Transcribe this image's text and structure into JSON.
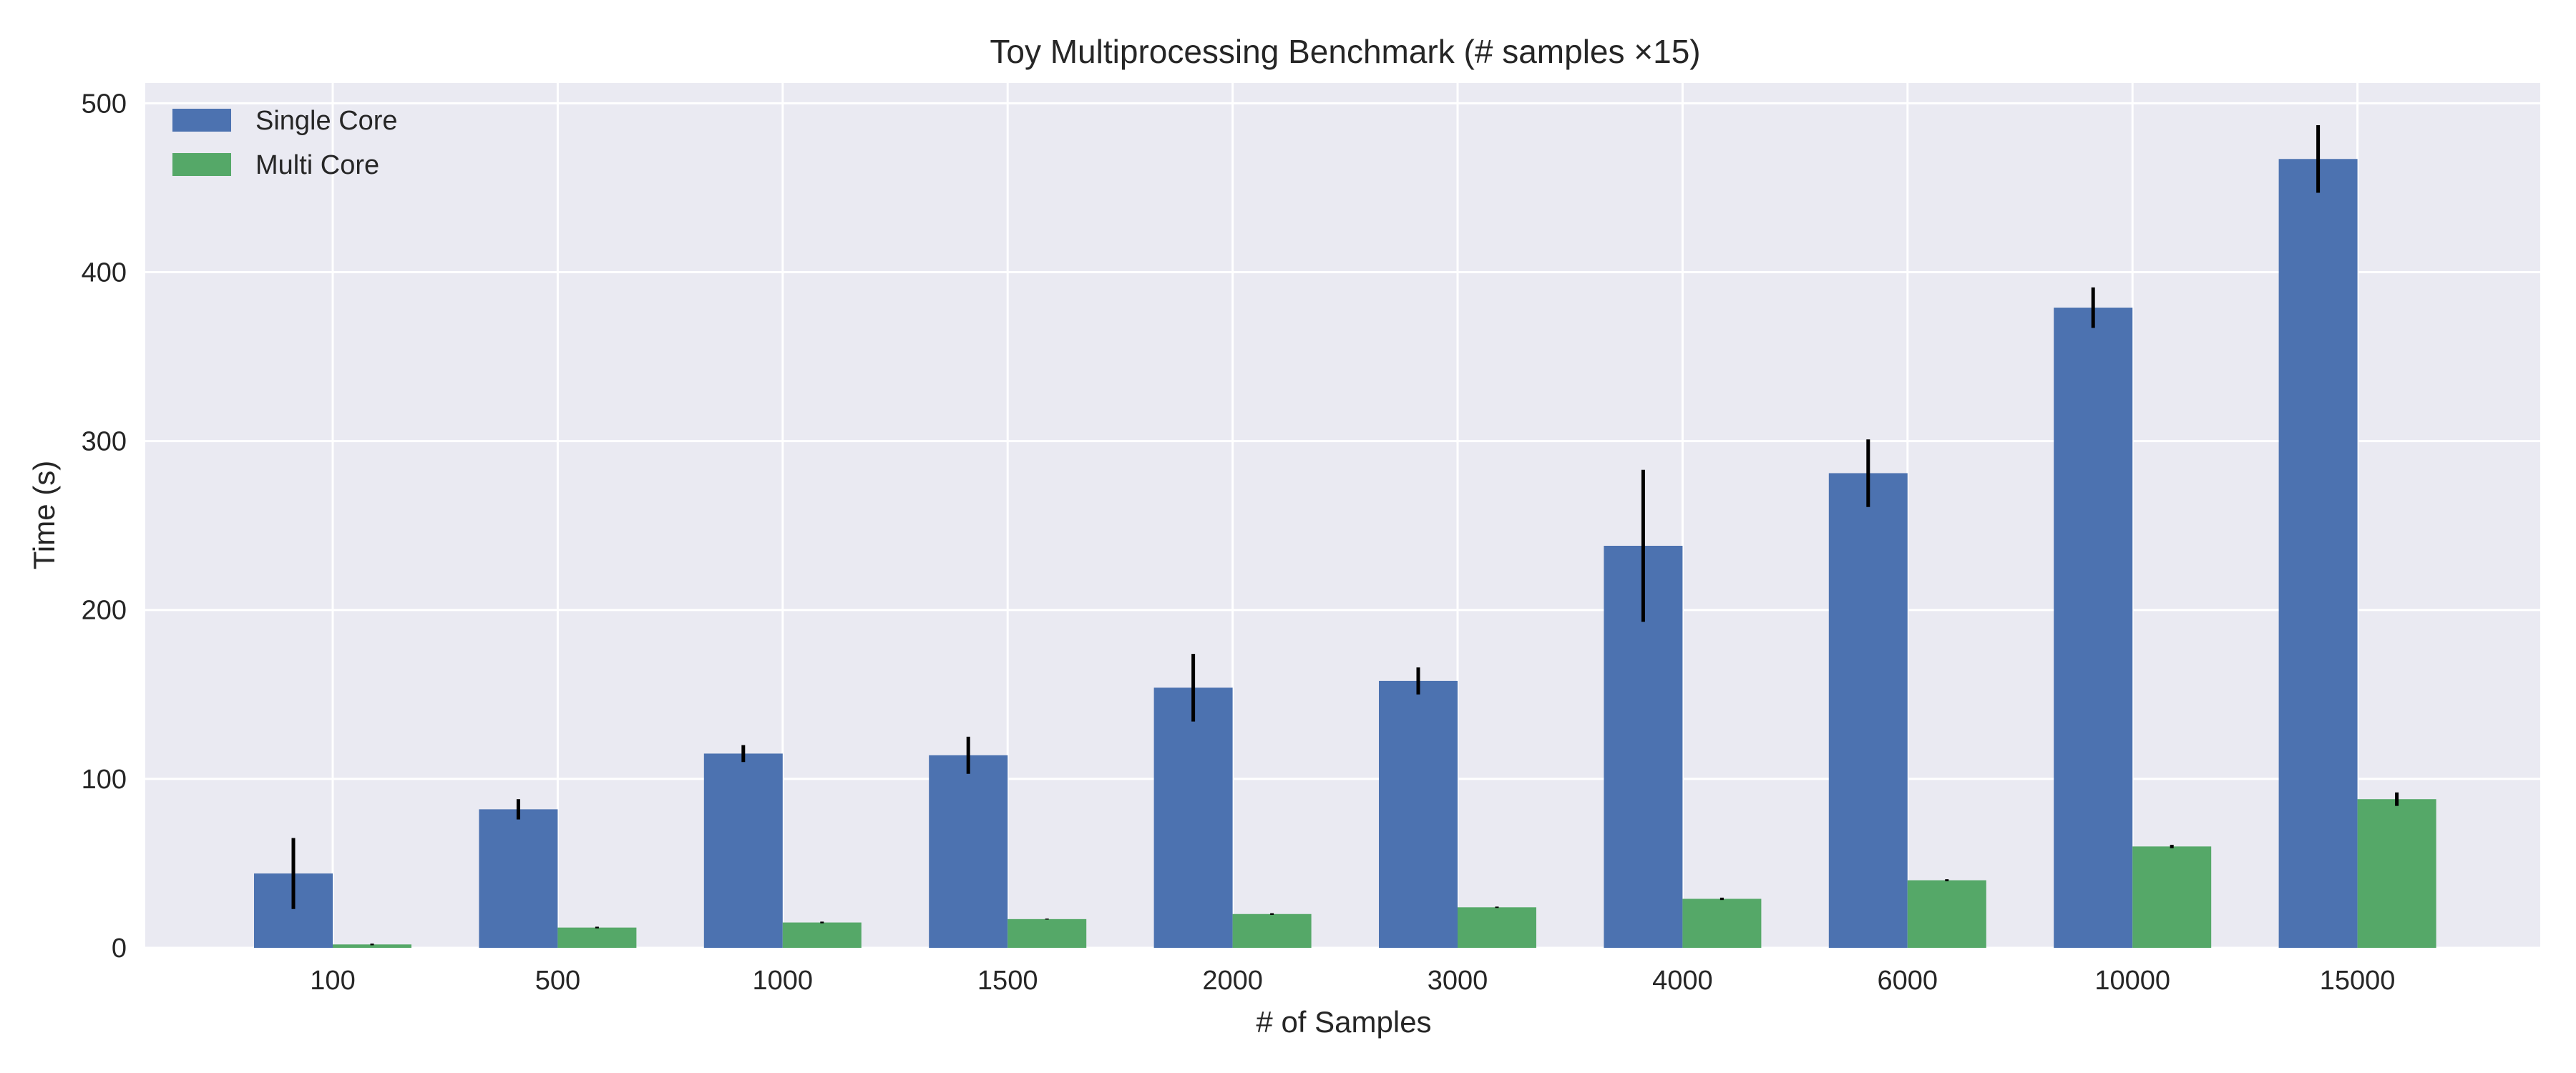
{
  "chart_data": {
    "type": "bar",
    "title": "Toy Multiprocessing Benchmark (# samples ×15)",
    "xlabel": "# of Samples",
    "ylabel": "Time (s)",
    "categories": [
      "100",
      "500",
      "1000",
      "1500",
      "2000",
      "3000",
      "4000",
      "6000",
      "10000",
      "15000"
    ],
    "ylim": [
      0,
      512
    ],
    "yticks": [
      0,
      100,
      200,
      300,
      400,
      500
    ],
    "grid": true,
    "legend_position": "top-left",
    "background_color": "#EAEAF2",
    "grid_color": "#FFFFFF",
    "errorbar_color": "#000000",
    "series": [
      {
        "name": "Single Core",
        "color": "#4C72B0",
        "values": [
          44,
          82,
          115,
          114,
          154,
          158,
          238,
          281,
          379,
          467
        ],
        "errors": [
          21,
          6,
          5,
          11,
          20,
          8,
          45,
          20,
          12,
          20
        ]
      },
      {
        "name": "Multi Core",
        "color": "#55A868",
        "values": [
          2,
          12,
          15,
          17,
          20,
          24,
          29,
          40,
          60,
          88
        ],
        "errors": [
          0.5,
          0.5,
          0.5,
          0.3,
          0.5,
          0.4,
          0.7,
          0.6,
          1,
          4
        ]
      }
    ]
  }
}
